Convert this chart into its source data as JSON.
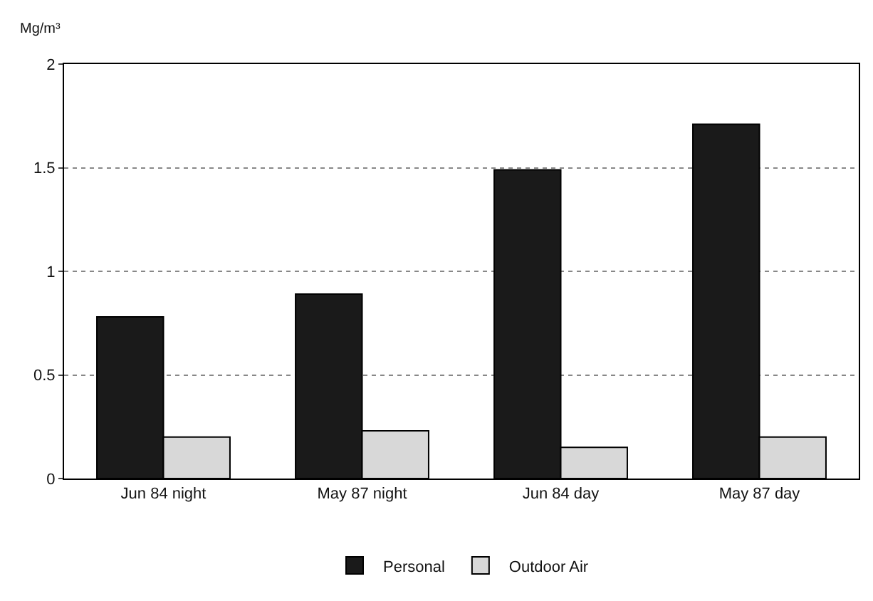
{
  "chart_data": {
    "type": "bar",
    "ylabel": "Mg/m³",
    "categories": [
      "Jun 84 night",
      "May 87 night",
      "Jun 84 day",
      "May 87 day"
    ],
    "series": [
      {
        "name": "Personal",
        "color": "#1a1a1a",
        "values": [
          0.78,
          0.89,
          1.49,
          1.71
        ]
      },
      {
        "name": "Outdoor Air",
        "color": "#d8d8d8",
        "values": [
          0.2,
          0.23,
          0.15,
          0.2
        ]
      }
    ],
    "ylim": [
      0,
      2
    ],
    "yticks": [
      0,
      0.5,
      1,
      1.5,
      2
    ],
    "grid": "y",
    "legend": "bottom"
  }
}
